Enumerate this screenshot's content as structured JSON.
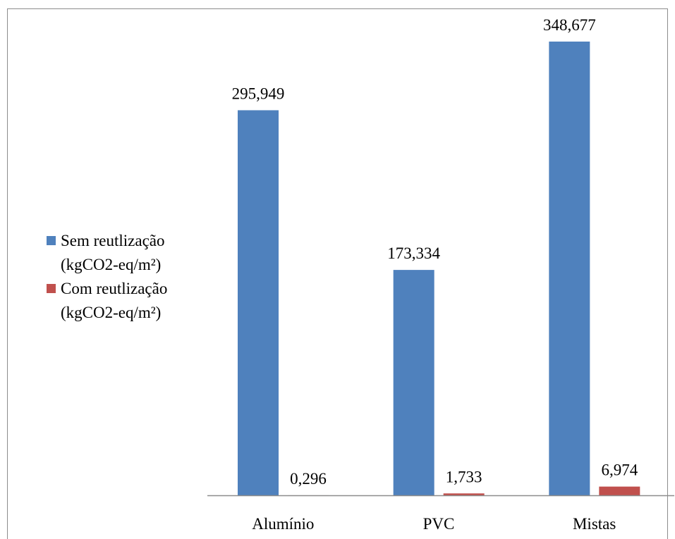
{
  "chart_data": {
    "type": "bar",
    "categories": [
      "Alumínio",
      "PVC",
      "Mistas"
    ],
    "series": [
      {
        "name": "Sem reutlização (kgCO2-eq/m²)",
        "values": [
          295.949,
          173.334,
          348.677
        ],
        "labels": [
          "295,949",
          "173,334",
          "348,677"
        ],
        "color": "#4f81bd"
      },
      {
        "name": "Com reutlização (kgCO2-eq/m²)",
        "values": [
          0.296,
          1.733,
          6.974
        ],
        "labels": [
          "0,296",
          "1,733",
          "6,974"
        ],
        "color": "#c0504d"
      }
    ],
    "title": "",
    "xlabel": "",
    "ylabel": "",
    "ylim": [
      0,
      360
    ],
    "grid": false,
    "legend": "left",
    "axis_color": "#8c8c8c"
  }
}
